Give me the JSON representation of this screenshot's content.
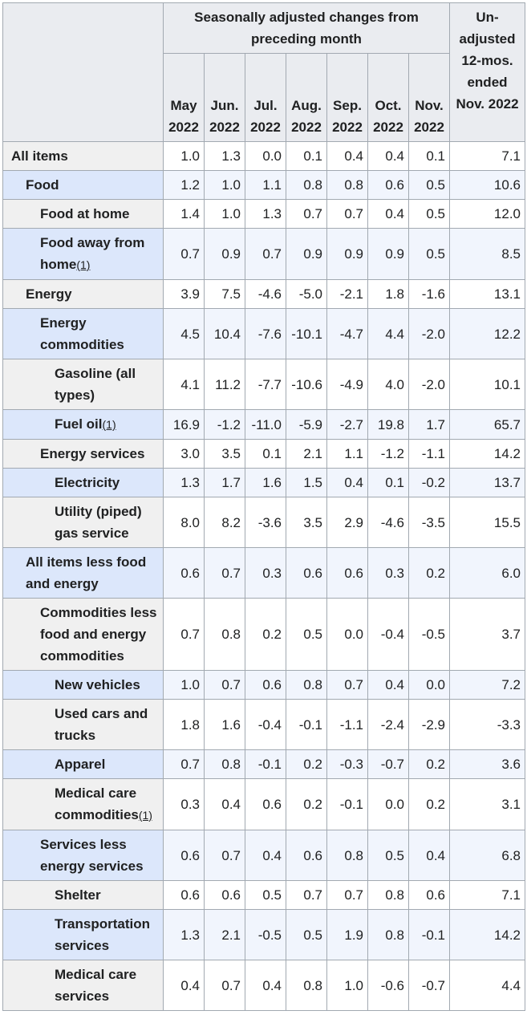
{
  "table": {
    "header": {
      "group": "Seasonally adjusted changes from preceding month",
      "unadjusted": "Un-adjusted 12-mos. ended Nov. 2022",
      "months": [
        "May 2022",
        "Jun. 2022",
        "Jul. 2022",
        "Aug. 2022",
        "Sep. 2022",
        "Oct. 2022",
        "Nov. 2022"
      ]
    },
    "rows": [
      {
        "label": "All items",
        "values": [
          "1.0",
          "1.3",
          "0.0",
          "0.1",
          "0.4",
          "0.4",
          "0.1",
          "7.1"
        ]
      },
      {
        "label": "Food",
        "values": [
          "1.2",
          "1.0",
          "1.1",
          "0.8",
          "0.8",
          "0.6",
          "0.5",
          "10.6"
        ]
      },
      {
        "label": "Food at home",
        "values": [
          "1.4",
          "1.0",
          "1.3",
          "0.7",
          "0.7",
          "0.4",
          "0.5",
          "12.0"
        ]
      },
      {
        "label": "Food away from home",
        "footnote": "(1)",
        "values": [
          "0.7",
          "0.9",
          "0.7",
          "0.9",
          "0.9",
          "0.9",
          "0.5",
          "8.5"
        ]
      },
      {
        "label": "Energy",
        "values": [
          "3.9",
          "7.5",
          "-4.6",
          "-5.0",
          "-2.1",
          "1.8",
          "-1.6",
          "13.1"
        ]
      },
      {
        "label": "Energy commodities",
        "values": [
          "4.5",
          "10.4",
          "-7.6",
          "-10.1",
          "-4.7",
          "4.4",
          "-2.0",
          "12.2"
        ]
      },
      {
        "label": "Gasoline (all types)",
        "values": [
          "4.1",
          "11.2",
          "-7.7",
          "-10.6",
          "-4.9",
          "4.0",
          "-2.0",
          "10.1"
        ]
      },
      {
        "label": "Fuel oil",
        "footnote": "(1)",
        "values": [
          "16.9",
          "-1.2",
          "-11.0",
          "-5.9",
          "-2.7",
          "19.8",
          "1.7",
          "65.7"
        ]
      },
      {
        "label": "Energy services",
        "values": [
          "3.0",
          "3.5",
          "0.1",
          "2.1",
          "1.1",
          "-1.2",
          "-1.1",
          "14.2"
        ]
      },
      {
        "label": "Electricity",
        "values": [
          "1.3",
          "1.7",
          "1.6",
          "1.5",
          "0.4",
          "0.1",
          "-0.2",
          "13.7"
        ]
      },
      {
        "label": "Utility (piped) gas service",
        "values": [
          "8.0",
          "8.2",
          "-3.6",
          "3.5",
          "2.9",
          "-4.6",
          "-3.5",
          "15.5"
        ]
      },
      {
        "label": "All items less food and energy",
        "values": [
          "0.6",
          "0.7",
          "0.3",
          "0.6",
          "0.6",
          "0.3",
          "0.2",
          "6.0"
        ]
      },
      {
        "label": "Commodities less food and energy commodities",
        "values": [
          "0.7",
          "0.8",
          "0.2",
          "0.5",
          "0.0",
          "-0.4",
          "-0.5",
          "3.7"
        ]
      },
      {
        "label": "New vehicles",
        "values": [
          "1.0",
          "0.7",
          "0.6",
          "0.8",
          "0.7",
          "0.4",
          "0.0",
          "7.2"
        ]
      },
      {
        "label": "Used cars and trucks",
        "values": [
          "1.8",
          "1.6",
          "-0.4",
          "-0.1",
          "-1.1",
          "-2.4",
          "-2.9",
          "-3.3"
        ]
      },
      {
        "label": "Apparel",
        "values": [
          "0.7",
          "0.8",
          "-0.1",
          "0.2",
          "-0.3",
          "-0.7",
          "0.2",
          "3.6"
        ]
      },
      {
        "label": "Medical care commodities",
        "footnote": "(1)",
        "values": [
          "0.3",
          "0.4",
          "0.6",
          "0.2",
          "-0.1",
          "0.0",
          "0.2",
          "3.1"
        ]
      },
      {
        "label": "Services less energy services",
        "values": [
          "0.6",
          "0.7",
          "0.4",
          "0.6",
          "0.8",
          "0.5",
          "0.4",
          "6.8"
        ]
      },
      {
        "label": "Shelter",
        "values": [
          "0.6",
          "0.6",
          "0.5",
          "0.7",
          "0.7",
          "0.8",
          "0.6",
          "7.1"
        ]
      },
      {
        "label": "Transportation services",
        "values": [
          "1.3",
          "2.1",
          "-0.5",
          "0.5",
          "1.9",
          "0.8",
          "-0.1",
          "14.2"
        ]
      },
      {
        "label": "Medical care services",
        "values": [
          "0.4",
          "0.7",
          "0.4",
          "0.8",
          "1.0",
          "-0.6",
          "-0.7",
          "4.4"
        ]
      }
    ]
  }
}
